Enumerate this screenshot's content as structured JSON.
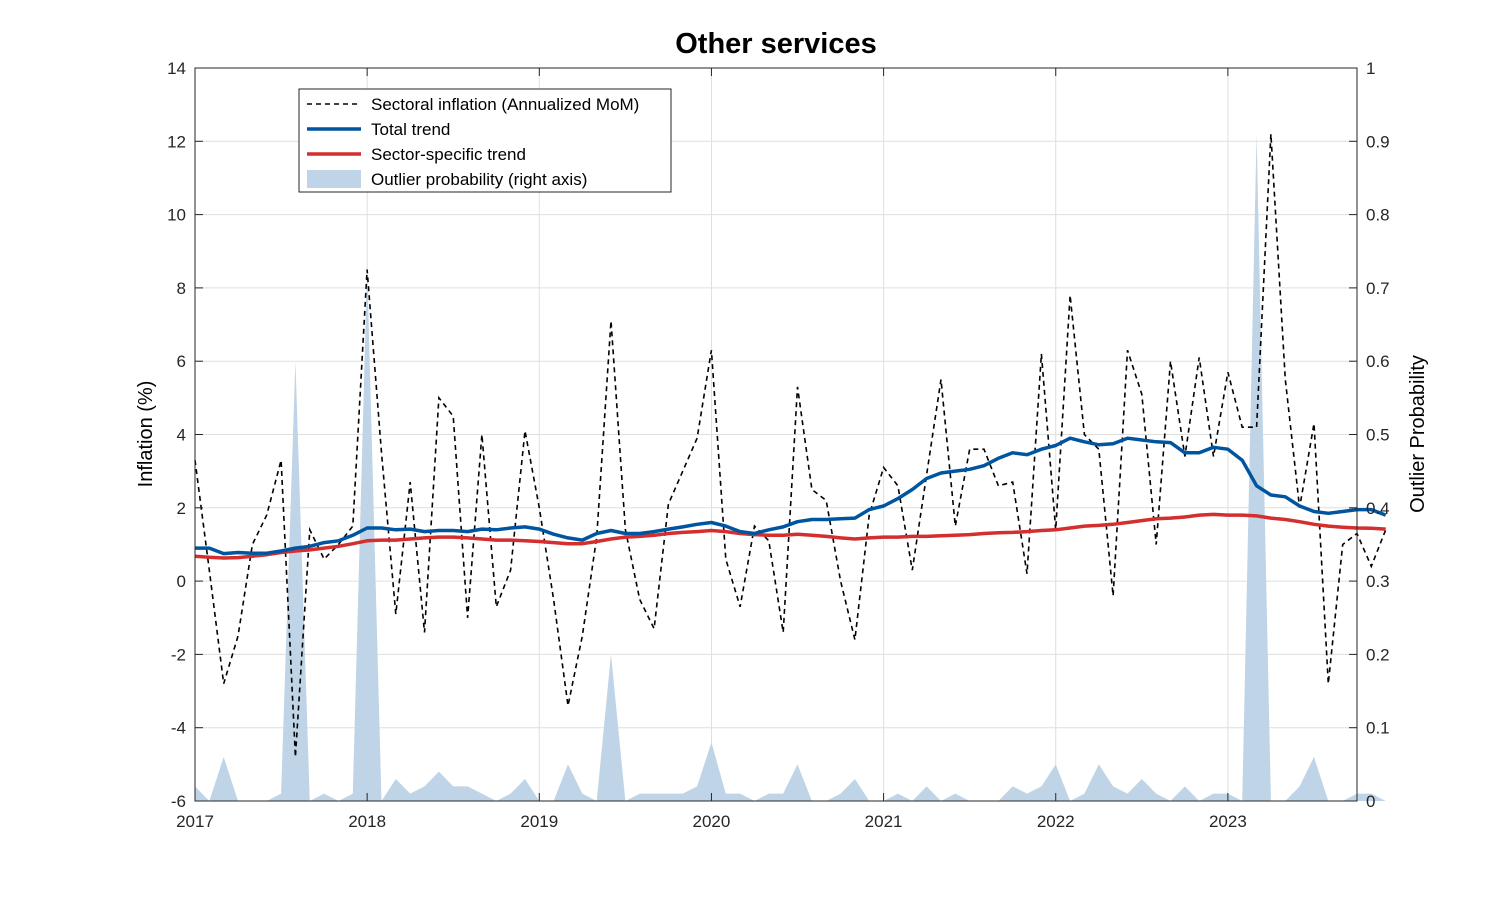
{
  "chart_data": {
    "type": "line",
    "title": "Other services",
    "xlabel": "",
    "ylabel": "Inflation (%)",
    "ylabel_right": "Outlier Probability",
    "xlim": [
      2017,
      2023.75
    ],
    "ylim": [
      -6,
      14
    ],
    "ylim_right": [
      0,
      1
    ],
    "x_ticks": [
      2017,
      2018,
      2019,
      2020,
      2021,
      2022,
      2023
    ],
    "x_tick_labels": [
      "2017",
      "2018",
      "2019",
      "2020",
      "2021",
      "2022",
      "2023"
    ],
    "y_ticks": [
      -6,
      -4,
      -2,
      0,
      2,
      4,
      6,
      8,
      10,
      12,
      14
    ],
    "y_tick_labels": [
      "-6",
      "-4",
      "-2",
      "0",
      "2",
      "4",
      "6",
      "8",
      "10",
      "12",
      "14"
    ],
    "y_ticks_right": [
      0,
      0.1,
      0.2,
      0.3,
      0.4,
      0.5,
      0.6,
      0.7,
      0.8,
      0.9,
      1
    ],
    "y_tick_labels_right": [
      "0",
      "0.1",
      "0.2",
      "0.3",
      "0.4",
      "0.5",
      "0.6",
      "0.7",
      "0.8",
      "0.9",
      "1"
    ],
    "grid": true,
    "legend_position": "top-left",
    "colors": {
      "sectoral": "#000000",
      "total_trend": "#0055a0",
      "sector_trend": "#d42e2e",
      "outlier": "#bfd4e6"
    },
    "series": [
      {
        "name": "Sectoral inflation (Annualized MoM)",
        "axis": "left",
        "style": "dashed",
        "values": [
          3.3,
          0.3,
          -2.8,
          -1.5,
          1.0,
          1.8,
          3.3,
          -4.8,
          1.4,
          0.6,
          1.0,
          1.5,
          8.5,
          3.5,
          -0.9,
          2.7,
          -1.4,
          5.0,
          4.5,
          -1.0,
          4.0,
          -0.7,
          0.3,
          4.1,
          2.0,
          -0.5,
          -3.4,
          -1.5,
          1.2,
          7.1,
          1.4,
          -0.5,
          -1.3,
          2.1,
          3.0,
          3.9,
          6.3,
          0.6,
          -0.7,
          1.5,
          1.1,
          -1.4,
          5.3,
          2.5,
          2.2,
          0.0,
          -1.6,
          1.8,
          3.1,
          2.6,
          0.3,
          2.9,
          5.5,
          1.5,
          3.6,
          3.6,
          2.6,
          2.7,
          0.2,
          6.2,
          1.4,
          7.8,
          4.0,
          3.6,
          -0.4,
          6.3,
          5.1,
          1.0,
          6.0,
          3.4,
          6.1,
          3.4,
          5.7,
          4.2,
          4.2,
          12.2,
          5.5,
          2.0,
          4.3,
          -2.8,
          1.0,
          1.3,
          0.4,
          1.4
        ]
      },
      {
        "name": "Total trend",
        "axis": "left",
        "style": "solid",
        "values": [
          0.9,
          0.9,
          0.75,
          0.78,
          0.76,
          0.76,
          0.82,
          0.9,
          0.95,
          1.05,
          1.1,
          1.25,
          1.45,
          1.45,
          1.4,
          1.42,
          1.35,
          1.38,
          1.38,
          1.35,
          1.42,
          1.4,
          1.45,
          1.48,
          1.42,
          1.28,
          1.18,
          1.12,
          1.3,
          1.38,
          1.3,
          1.3,
          1.35,
          1.42,
          1.48,
          1.55,
          1.6,
          1.5,
          1.35,
          1.3,
          1.4,
          1.48,
          1.62,
          1.68,
          1.68,
          1.7,
          1.72,
          1.95,
          2.05,
          2.25,
          2.5,
          2.8,
          2.95,
          3.0,
          3.05,
          3.15,
          3.35,
          3.5,
          3.45,
          3.6,
          3.7,
          3.9,
          3.8,
          3.72,
          3.75,
          3.9,
          3.85,
          3.8,
          3.78,
          3.5,
          3.5,
          3.65,
          3.6,
          3.3,
          2.6,
          2.35,
          2.3,
          2.05,
          1.9,
          1.85,
          1.9,
          1.95,
          1.95,
          1.8
        ]
      },
      {
        "name": "Sector-specific trend",
        "axis": "left",
        "style": "solid",
        "values": [
          0.68,
          0.65,
          0.63,
          0.64,
          0.68,
          0.72,
          0.78,
          0.82,
          0.85,
          0.9,
          0.95,
          1.02,
          1.1,
          1.12,
          1.12,
          1.15,
          1.18,
          1.2,
          1.2,
          1.18,
          1.15,
          1.12,
          1.12,
          1.1,
          1.08,
          1.05,
          1.02,
          1.02,
          1.08,
          1.15,
          1.2,
          1.22,
          1.25,
          1.3,
          1.33,
          1.35,
          1.38,
          1.35,
          1.3,
          1.27,
          1.25,
          1.25,
          1.28,
          1.25,
          1.22,
          1.18,
          1.15,
          1.18,
          1.2,
          1.2,
          1.22,
          1.22,
          1.24,
          1.25,
          1.27,
          1.3,
          1.32,
          1.33,
          1.35,
          1.38,
          1.4,
          1.45,
          1.5,
          1.52,
          1.55,
          1.6,
          1.65,
          1.7,
          1.72,
          1.75,
          1.8,
          1.82,
          1.8,
          1.8,
          1.78,
          1.72,
          1.68,
          1.62,
          1.55,
          1.5,
          1.47,
          1.45,
          1.44,
          1.42
        ]
      },
      {
        "name": "Outlier probability (right axis)",
        "axis": "right",
        "style": "area",
        "values": [
          0.02,
          0.0,
          0.06,
          0.0,
          0.0,
          0.0,
          0.01,
          0.6,
          0.0,
          0.01,
          0.0,
          0.01,
          0.73,
          0.0,
          0.03,
          0.01,
          0.02,
          0.04,
          0.02,
          0.02,
          0.01,
          0.0,
          0.01,
          0.03,
          0.0,
          0.0,
          0.05,
          0.01,
          0.0,
          0.2,
          0.0,
          0.01,
          0.01,
          0.01,
          0.01,
          0.02,
          0.08,
          0.01,
          0.01,
          0.0,
          0.01,
          0.01,
          0.05,
          0.0,
          0.0,
          0.01,
          0.03,
          0.0,
          0.0,
          0.01,
          0.0,
          0.02,
          0.0,
          0.01,
          0.0,
          0.0,
          0.0,
          0.02,
          0.01,
          0.02,
          0.05,
          0.0,
          0.01,
          0.05,
          0.02,
          0.01,
          0.03,
          0.01,
          0.0,
          0.02,
          0.0,
          0.01,
          0.01,
          0.0,
          0.91,
          0.0,
          0.0,
          0.02,
          0.06,
          0.0,
          0.0,
          0.01,
          0.01,
          0.0
        ]
      }
    ]
  }
}
